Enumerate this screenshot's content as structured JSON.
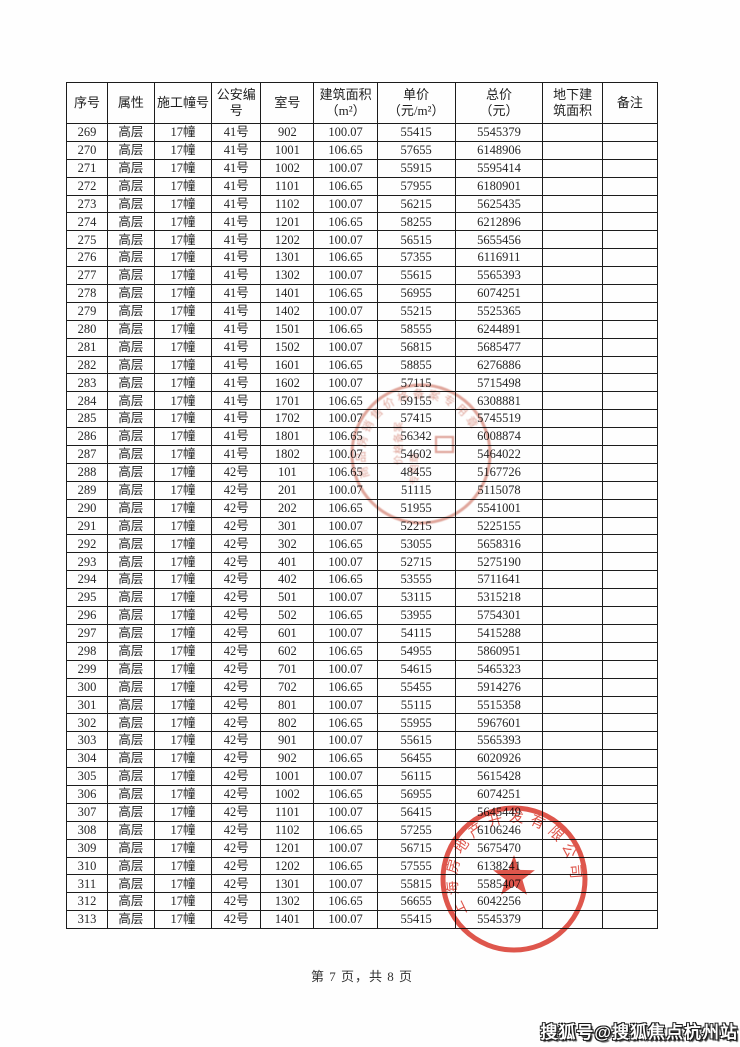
{
  "header": {
    "columns": [
      {
        "label": "序号"
      },
      {
        "label": "属性"
      },
      {
        "label": "施工幢号"
      },
      {
        "label": "公安编\n号"
      },
      {
        "label": "室号"
      },
      {
        "label": "建筑面积\n（m²）"
      },
      {
        "label": "单价\n（元/m²）"
      },
      {
        "label": "总价\n（元）"
      },
      {
        "label": "地下建\n筑面积"
      },
      {
        "label": "备注"
      }
    ]
  },
  "rows": [
    [
      "269",
      "高层",
      "17幢",
      "41号",
      "902",
      "100.07",
      "55415",
      "5545379"
    ],
    [
      "270",
      "高层",
      "17幢",
      "41号",
      "1001",
      "106.65",
      "57655",
      "6148906"
    ],
    [
      "271",
      "高层",
      "17幢",
      "41号",
      "1002",
      "100.07",
      "55915",
      "5595414"
    ],
    [
      "272",
      "高层",
      "17幢",
      "41号",
      "1101",
      "106.65",
      "57955",
      "6180901"
    ],
    [
      "273",
      "高层",
      "17幢",
      "41号",
      "1102",
      "100.07",
      "56215",
      "5625435"
    ],
    [
      "274",
      "高层",
      "17幢",
      "41号",
      "1201",
      "106.65",
      "58255",
      "6212896"
    ],
    [
      "275",
      "高层",
      "17幢",
      "41号",
      "1202",
      "100.07",
      "56515",
      "5655456"
    ],
    [
      "276",
      "高层",
      "17幢",
      "41号",
      "1301",
      "106.65",
      "57355",
      "6116911"
    ],
    [
      "277",
      "高层",
      "17幢",
      "41号",
      "1302",
      "100.07",
      "55615",
      "5565393"
    ],
    [
      "278",
      "高层",
      "17幢",
      "41号",
      "1401",
      "106.65",
      "56955",
      "6074251"
    ],
    [
      "279",
      "高层",
      "17幢",
      "41号",
      "1402",
      "100.07",
      "55215",
      "5525365"
    ],
    [
      "280",
      "高层",
      "17幢",
      "41号",
      "1501",
      "106.65",
      "58555",
      "6244891"
    ],
    [
      "281",
      "高层",
      "17幢",
      "41号",
      "1502",
      "100.07",
      "56815",
      "5685477"
    ],
    [
      "282",
      "高层",
      "17幢",
      "41号",
      "1601",
      "106.65",
      "58855",
      "6276886"
    ],
    [
      "283",
      "高层",
      "17幢",
      "41号",
      "1602",
      "100.07",
      "57115",
      "5715498"
    ],
    [
      "284",
      "高层",
      "17幢",
      "41号",
      "1701",
      "106.65",
      "59155",
      "6308881"
    ],
    [
      "285",
      "高层",
      "17幢",
      "41号",
      "1702",
      "100.07",
      "57415",
      "5745519"
    ],
    [
      "286",
      "高层",
      "17幢",
      "41号",
      "1801",
      "106.65",
      "56342",
      "6008874"
    ],
    [
      "287",
      "高层",
      "17幢",
      "41号",
      "1802",
      "100.07",
      "54602",
      "5464022"
    ],
    [
      "288",
      "高层",
      "17幢",
      "42号",
      "101",
      "106.65",
      "48455",
      "5167726"
    ],
    [
      "289",
      "高层",
      "17幢",
      "42号",
      "201",
      "100.07",
      "51115",
      "5115078"
    ],
    [
      "290",
      "高层",
      "17幢",
      "42号",
      "202",
      "106.65",
      "51955",
      "5541001"
    ],
    [
      "291",
      "高层",
      "17幢",
      "42号",
      "301",
      "100.07",
      "52215",
      "5225155"
    ],
    [
      "292",
      "高层",
      "17幢",
      "42号",
      "302",
      "106.65",
      "53055",
      "5658316"
    ],
    [
      "293",
      "高层",
      "17幢",
      "42号",
      "401",
      "100.07",
      "52715",
      "5275190"
    ],
    [
      "294",
      "高层",
      "17幢",
      "42号",
      "402",
      "106.65",
      "53555",
      "5711641"
    ],
    [
      "295",
      "高层",
      "17幢",
      "42号",
      "501",
      "100.07",
      "53115",
      "5315218"
    ],
    [
      "296",
      "高层",
      "17幢",
      "42号",
      "502",
      "106.65",
      "53955",
      "5754301"
    ],
    [
      "297",
      "高层",
      "17幢",
      "42号",
      "601",
      "100.07",
      "54115",
      "5415288"
    ],
    [
      "298",
      "高层",
      "17幢",
      "42号",
      "602",
      "106.65",
      "54955",
      "5860951"
    ],
    [
      "299",
      "高层",
      "17幢",
      "42号",
      "701",
      "100.07",
      "54615",
      "5465323"
    ],
    [
      "300",
      "高层",
      "17幢",
      "42号",
      "702",
      "106.65",
      "55455",
      "5914276"
    ],
    [
      "301",
      "高层",
      "17幢",
      "42号",
      "801",
      "100.07",
      "55115",
      "5515358"
    ],
    [
      "302",
      "高层",
      "17幢",
      "42号",
      "802",
      "106.65",
      "55955",
      "5967601"
    ],
    [
      "303",
      "高层",
      "17幢",
      "42号",
      "901",
      "100.07",
      "55615",
      "5565393"
    ],
    [
      "304",
      "高层",
      "17幢",
      "42号",
      "902",
      "106.65",
      "56455",
      "6020926"
    ],
    [
      "305",
      "高层",
      "17幢",
      "42号",
      "1001",
      "100.07",
      "56115",
      "5615428"
    ],
    [
      "306",
      "高层",
      "17幢",
      "42号",
      "1002",
      "106.65",
      "56955",
      "6074251"
    ],
    [
      "307",
      "高层",
      "17幢",
      "42号",
      "1101",
      "100.07",
      "56415",
      "5645449"
    ],
    [
      "308",
      "高层",
      "17幢",
      "42号",
      "1102",
      "106.65",
      "57255",
      "6106246"
    ],
    [
      "309",
      "高层",
      "17幢",
      "42号",
      "1201",
      "100.07",
      "56715",
      "5675470"
    ],
    [
      "310",
      "高层",
      "17幢",
      "42号",
      "1202",
      "106.65",
      "57555",
      "6138241"
    ],
    [
      "311",
      "高层",
      "17幢",
      "42号",
      "1301",
      "100.07",
      "55815",
      "5585407"
    ],
    [
      "312",
      "高层",
      "17幢",
      "42号",
      "1302",
      "106.65",
      "56655",
      "6042256"
    ],
    [
      "313",
      "高层",
      "17幢",
      "42号",
      "1401",
      "100.07",
      "55415",
      "5545379"
    ]
  ],
  "footer": {
    "page_indicator": "第 7 页，共 8 页"
  },
  "stamps": {
    "filing_seal_text": "商品房销售价格备案专用章",
    "filing_inner_line1": "价格备案",
    "filing_inner_line2": "专用章",
    "company_seal_text": "上海房地产开发有限公司"
  },
  "watermark": {
    "text": "搜狐号@搜狐焦点杭州站"
  }
}
